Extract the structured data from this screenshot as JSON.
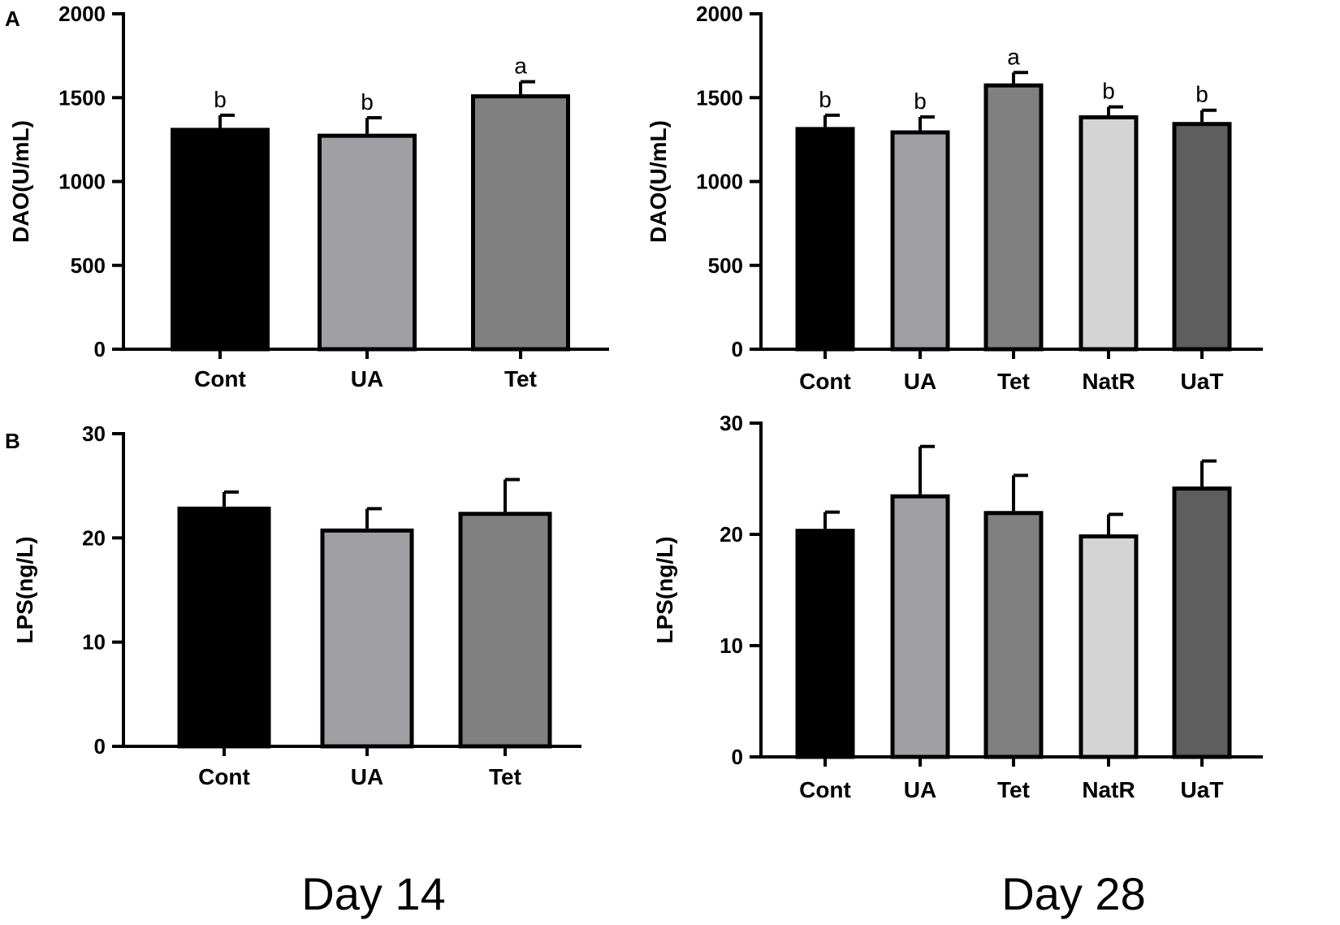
{
  "figure": {
    "panel_letters": [
      "A",
      "B"
    ],
    "day_labels": [
      "Day 14",
      "Day 28"
    ]
  },
  "chart_data": [
    {
      "id": "dao_day14",
      "type": "bar",
      "title": "",
      "xlabel": "",
      "ylabel": "DAO(U/mL)",
      "ylim": [
        0,
        2000
      ],
      "yticks": [
        0,
        500,
        1000,
        1500,
        2000
      ],
      "categories": [
        "Cont",
        "UA",
        "Tet"
      ],
      "values": [
        1320,
        1285,
        1520
      ],
      "errors": [
        75,
        95,
        75
      ],
      "significance": [
        "b",
        "b",
        "a"
      ],
      "colors": [
        "#000000",
        "#a0a0a4",
        "#808080"
      ]
    },
    {
      "id": "dao_day28",
      "type": "bar",
      "title": "",
      "xlabel": "",
      "ylabel": "DAO(U/mL)",
      "ylim": [
        0,
        2000
      ],
      "yticks": [
        0,
        500,
        1000,
        1500,
        2000
      ],
      "categories": [
        "Cont",
        "UA",
        "Tet",
        "NatR",
        "UaT"
      ],
      "values": [
        1325,
        1305,
        1585,
        1395,
        1355
      ],
      "errors": [
        70,
        80,
        65,
        50,
        70
      ],
      "significance": [
        "b",
        "b",
        "a",
        "b",
        "b"
      ],
      "colors": [
        "#000000",
        "#a0a0a4",
        "#808080",
        "#d4d4d4",
        "#5e5e5e"
      ]
    },
    {
      "id": "lps_day14",
      "type": "bar",
      "title": "",
      "xlabel": "",
      "ylabel": "LPS(ng/L)",
      "ylim": [
        0,
        30
      ],
      "yticks": [
        0,
        10,
        20,
        30
      ],
      "categories": [
        "Cont",
        "UA",
        "Tet"
      ],
      "values": [
        23.0,
        20.9,
        22.5
      ],
      "errors": [
        1.4,
        1.9,
        3.1
      ],
      "colors": [
        "#000000",
        "#a0a0a4",
        "#808080"
      ]
    },
    {
      "id": "lps_day28",
      "type": "bar",
      "title": "",
      "xlabel": "",
      "ylabel": "LPS(ng/L)",
      "ylim": [
        0,
        30
      ],
      "yticks": [
        0,
        10,
        20,
        30
      ],
      "categories": [
        "Cont",
        "UA",
        "Tet",
        "NatR",
        "UaT"
      ],
      "values": [
        20.5,
        23.6,
        22.1,
        20.0,
        24.3
      ],
      "errors": [
        1.5,
        4.3,
        3.2,
        1.8,
        2.3
      ],
      "colors": [
        "#000000",
        "#a0a0a4",
        "#808080",
        "#d4d4d4",
        "#5e5e5e"
      ]
    }
  ]
}
